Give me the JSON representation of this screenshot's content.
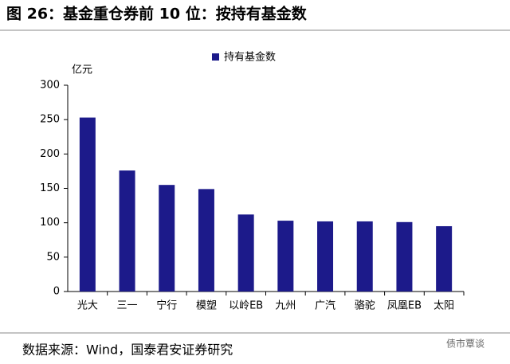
{
  "chart_data": {
    "type": "bar",
    "title": "图 26：基金重仓券前 10 位：按持有基金数",
    "y_label": "亿元",
    "categories": [
      "光大",
      "三一",
      "宁行",
      "模塑",
      "以岭EB",
      "九州",
      "广汽",
      "骆驼",
      "凤凰EB",
      "太阳"
    ],
    "series": [
      {
        "name": "持有基金数",
        "color": "#1c1a8a",
        "values": [
          253,
          176,
          155,
          149,
          112,
          103,
          102,
          102,
          101,
          95
        ]
      }
    ],
    "ylim": [
      0,
      300
    ],
    "yticks": [
      0,
      50,
      100,
      150,
      200,
      250,
      300
    ],
    "legend": "top",
    "source": "数据来源：Wind，国泰君安证券研究",
    "watermark": "债市覃谈"
  }
}
